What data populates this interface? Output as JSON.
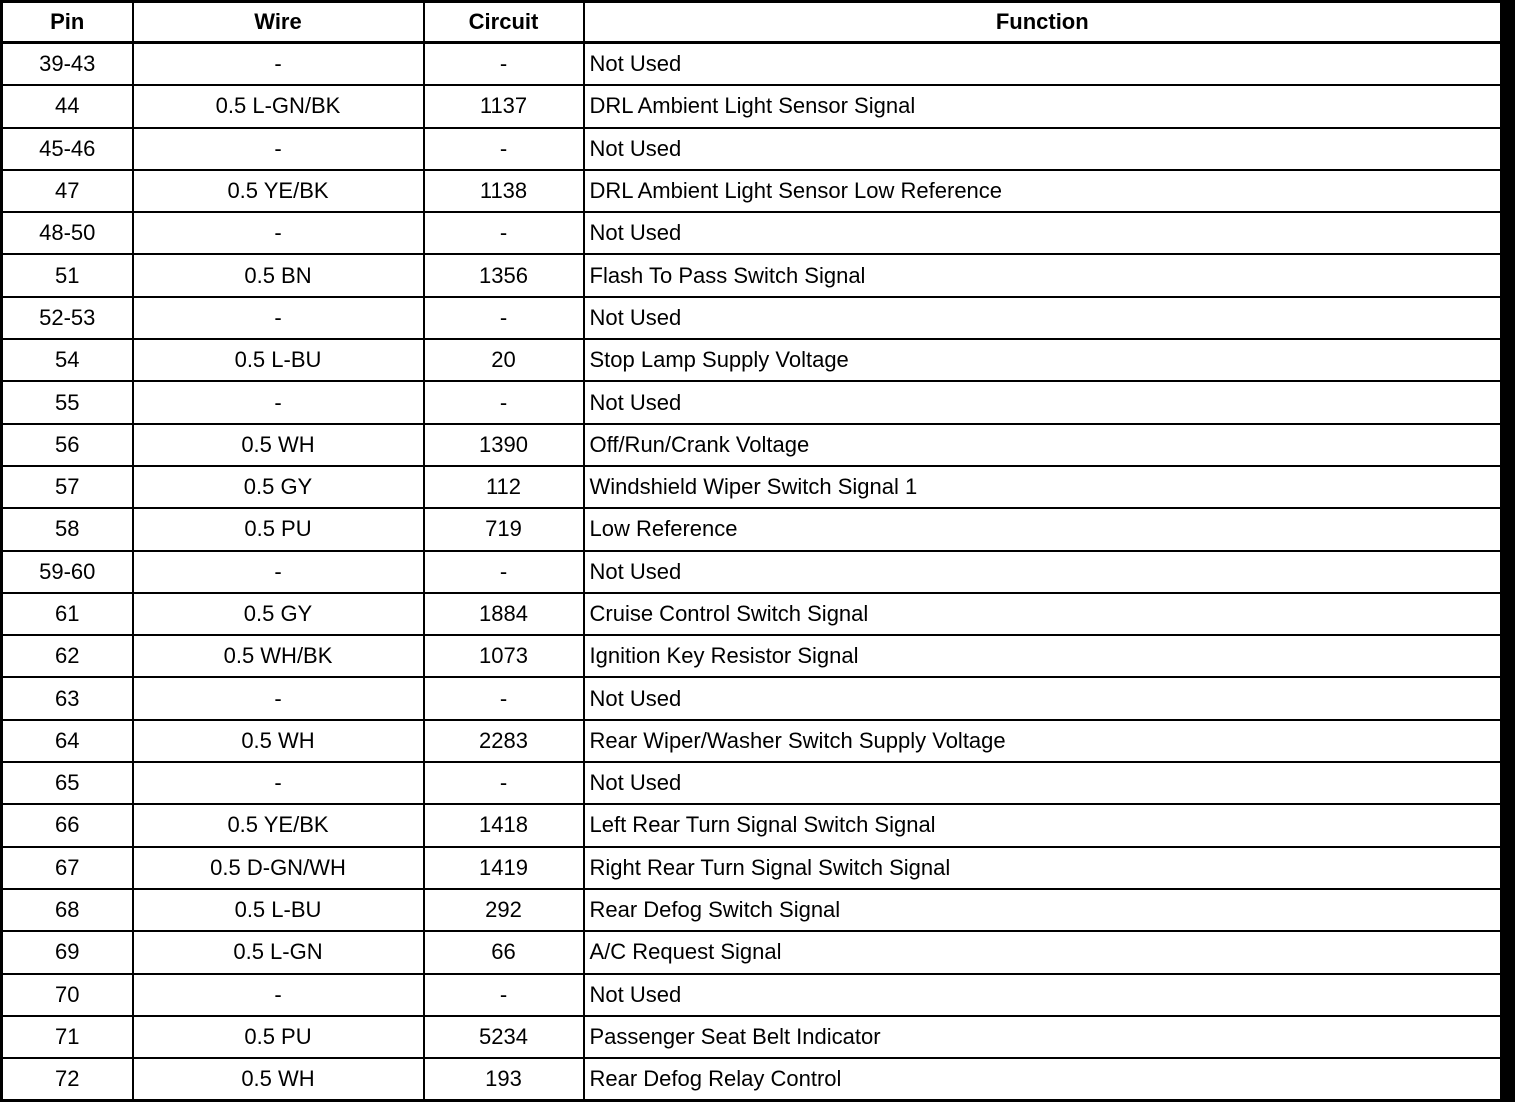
{
  "table": {
    "headers": [
      "Pin",
      "Wire",
      "Circuit",
      "Function"
    ],
    "rows": [
      [
        "39-43",
        "-",
        "-",
        "Not Used"
      ],
      [
        "44",
        "0.5 L-GN/BK",
        "1137",
        "DRL Ambient Light Sensor Signal"
      ],
      [
        "45-46",
        "-",
        "-",
        "Not Used"
      ],
      [
        "47",
        "0.5 YE/BK",
        "1138",
        "DRL Ambient Light Sensor Low Reference"
      ],
      [
        "48-50",
        "-",
        "-",
        "Not Used"
      ],
      [
        "51",
        "0.5 BN",
        "1356",
        "Flash To Pass Switch Signal"
      ],
      [
        "52-53",
        "-",
        "-",
        "Not Used"
      ],
      [
        "54",
        "0.5 L-BU",
        "20",
        "Stop Lamp Supply Voltage"
      ],
      [
        "55",
        "-",
        "-",
        "Not Used"
      ],
      [
        "56",
        "0.5 WH",
        "1390",
        "Off/Run/Crank Voltage"
      ],
      [
        "57",
        "0.5 GY",
        "112",
        "Windshield Wiper Switch Signal 1"
      ],
      [
        "58",
        "0.5 PU",
        "719",
        "Low Reference"
      ],
      [
        "59-60",
        "-",
        "-",
        "Not Used"
      ],
      [
        "61",
        "0.5 GY",
        "1884",
        "Cruise Control Switch Signal"
      ],
      [
        "62",
        "0.5 WH/BK",
        "1073",
        "Ignition Key Resistor Signal"
      ],
      [
        "63",
        "-",
        "-",
        "Not Used"
      ],
      [
        "64",
        "0.5 WH",
        "2283",
        "Rear Wiper/Washer Switch Supply Voltage"
      ],
      [
        "65",
        "-",
        "-",
        "Not Used"
      ],
      [
        "66",
        "0.5 YE/BK",
        "1418",
        "Left Rear Turn Signal Switch Signal"
      ],
      [
        "67",
        "0.5 D-GN/WH",
        "1419",
        "Right Rear Turn Signal Switch Signal"
      ],
      [
        "68",
        "0.5 L-BU",
        "292",
        "Rear Defog Switch Signal"
      ],
      [
        "69",
        "0.5 L-GN",
        "66",
        "A/C Request Signal"
      ],
      [
        "70",
        "-",
        "-",
        "Not Used"
      ],
      [
        "71",
        "0.5 PU",
        "5234",
        "Passenger Seat Belt Indicator"
      ],
      [
        "72",
        "0.5 WH",
        "193",
        "Rear Defog Relay Control"
      ]
    ]
  }
}
